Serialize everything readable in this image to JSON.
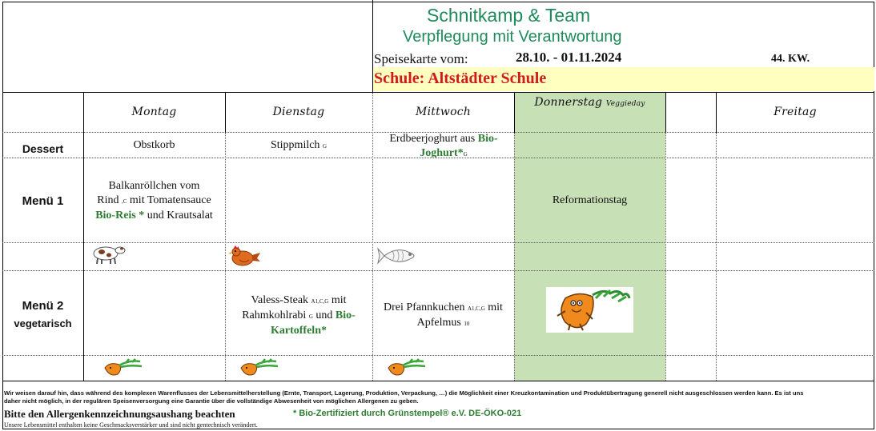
{
  "header": {
    "company": "Schnitkamp & Team",
    "tagline": "Verpflegung mit Verantwortung",
    "menu_label": "Speisekarte vom:",
    "dates": "28.10. - 01.11.2024",
    "week": "44. KW.",
    "school": "Schule: Altstädter Schule"
  },
  "days": {
    "mon": "Montag",
    "tue": "Dienstag",
    "wed": "Mittwoch",
    "thu": "Donnerstag",
    "thu_note": "Veggieday",
    "fri": "Freitag"
  },
  "rows": {
    "dessert": "Dessert",
    "menu1": "Menü 1",
    "menu2": "Menü 2",
    "menu2_sub": "vegetarisch"
  },
  "dessert": {
    "mon": "Obstkorb",
    "tue": "Stippmilch",
    "tue_code": "G",
    "wed_a": "Erdbeerjoghurt aus",
    "wed_b": "Bio-",
    "wed_c": "Joghurt*",
    "wed_code": "G"
  },
  "menu1": {
    "mon_a": "Balkanröllchen vom",
    "mon_b": "Rind",
    "mon_code": ",C",
    "mon_c": "mit Tomatensauce",
    "mon_d": "Bio-Reis *",
    "mon_e": "und Krautsalat",
    "thu": "Reformationstag"
  },
  "menu2": {
    "tue_a": "Valess-Steak",
    "tue_code1": "A1,C,G",
    "tue_b": "mit",
    "tue_c": "Rahmkohlrabi",
    "tue_code2": "G",
    "tue_d": "und",
    "tue_e": "Bio-",
    "tue_f": "Kartoffeln*",
    "wed_a": "Drei Pfannkuchen",
    "wed_code1": "A1,C,G",
    "wed_b": "mit",
    "wed_c": "Apfelmus",
    "wed_code2": "10"
  },
  "icons": {
    "menu1": [
      "cow-icon",
      "chicken-icon",
      "fish-icon"
    ],
    "menu2": [
      "carrot-icon",
      "carrot-icon",
      "carrot-icon"
    ],
    "veggie_mascot": "carrot-mascot-icon"
  },
  "footer": {
    "line1": "Wir weisen darauf hin, dass während des komplexen Warenflusses der Lebensmittelherstellung (Ernte, Transport, Lagerung, Produktion, Verpackung, …) die Möglichkeit einer Kreuzkontamination und Produktübertragung generell nicht ausgeschlossen werden kann. Es ist uns daher nicht möglich, in der regulären Speisenversorgung eine Garantie über die vollständige Abwesenheit von möglichen Allergenen zu geben.",
    "allergen": "Bitte den  Allergenkennzeichnungsaushang beachten",
    "bio": "* Bio-Zertifiziert durch Grünstempel® e.V. DE-ÖKO-021",
    "small": "Unsere Lebensmittel enthalten keine Geschmacksverstärker und sind nicht gentechnisch verändert."
  },
  "colors": {
    "brand_green": "#1f8a5a",
    "bio_green": "#2e7d32",
    "school_red": "#d11a1a",
    "school_bg": "#ffffbf",
    "veggieday_bg": "#c8e0b5"
  }
}
